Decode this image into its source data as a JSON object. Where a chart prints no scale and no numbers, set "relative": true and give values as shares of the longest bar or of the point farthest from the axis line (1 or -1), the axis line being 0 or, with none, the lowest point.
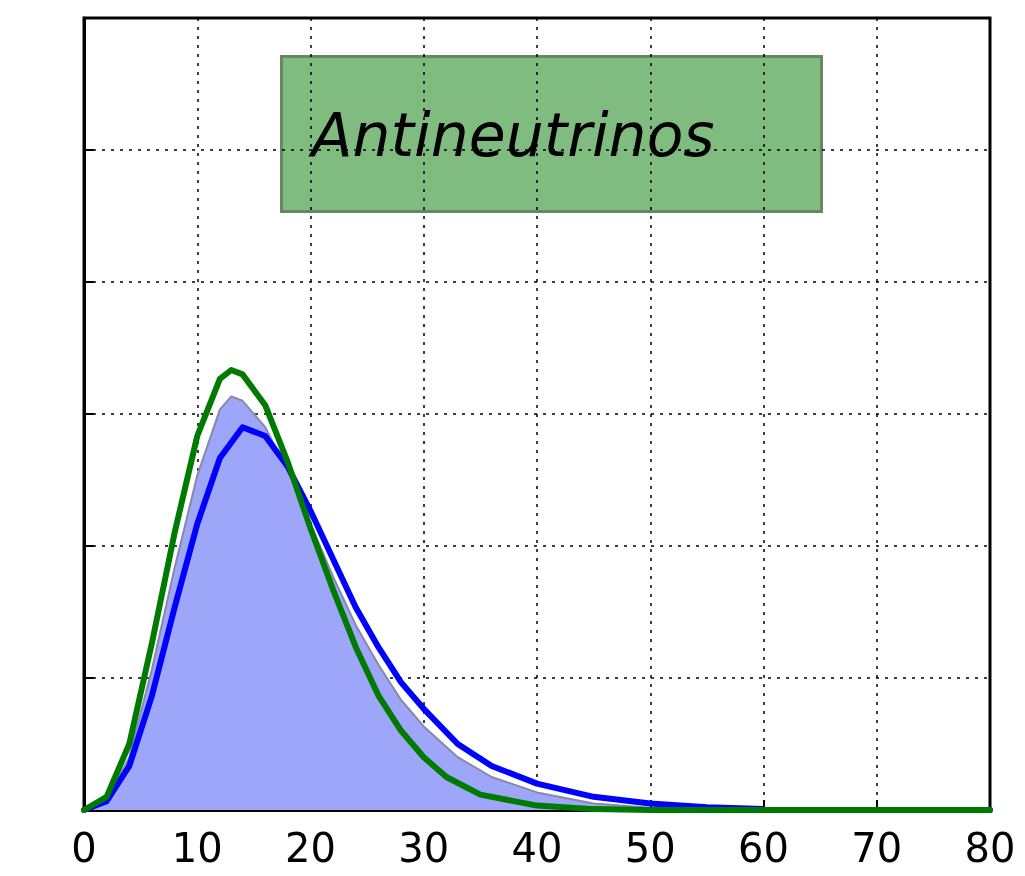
{
  "chart_data": {
    "type": "line",
    "relative": true,
    "tick_labels": "x",
    "grid": true,
    "xlim": [
      0,
      80
    ],
    "xticks": [
      0,
      10,
      20,
      30,
      40,
      50,
      60,
      70,
      80
    ],
    "annotations": [
      "Antineutrinos"
    ],
    "series": [
      {
        "type": "area",
        "color": "#9ea6fa",
        "x": [
          0,
          2,
          4,
          6,
          8,
          10,
          12,
          13,
          14,
          16,
          18,
          20,
          22,
          24,
          26,
          28,
          30,
          33,
          36,
          40,
          45,
          50,
          60,
          80
        ],
        "values": [
          0,
          0.02,
          0.12,
          0.32,
          0.55,
          0.76,
          0.91,
          0.94,
          0.93,
          0.87,
          0.77,
          0.65,
          0.53,
          0.42,
          0.33,
          0.25,
          0.19,
          0.12,
          0.075,
          0.04,
          0.015,
          0.005,
          0,
          0
        ]
      },
      {
        "color": "#0000ff",
        "x": [
          0,
          2,
          4,
          6,
          8,
          10,
          12,
          14,
          16,
          18,
          20,
          22,
          24,
          26,
          28,
          30,
          33,
          36,
          40,
          45,
          50,
          55,
          60,
          80
        ],
        "values": [
          0,
          0.02,
          0.1,
          0.26,
          0.46,
          0.65,
          0.8,
          0.87,
          0.85,
          0.78,
          0.68,
          0.57,
          0.46,
          0.37,
          0.29,
          0.23,
          0.15,
          0.1,
          0.06,
          0.03,
          0.015,
          0.006,
          0.002,
          0
        ]
      },
      {
        "color": "#007a00",
        "x": [
          0,
          2,
          4,
          6,
          8,
          10,
          12,
          13,
          14,
          16,
          18,
          20,
          22,
          24,
          26,
          28,
          30,
          32,
          35,
          40,
          45,
          50,
          80
        ],
        "values": [
          0,
          0.03,
          0.15,
          0.38,
          0.63,
          0.85,
          0.98,
          1,
          0.99,
          0.92,
          0.79,
          0.64,
          0.5,
          0.37,
          0.26,
          0.18,
          0.12,
          0.075,
          0.035,
          0.01,
          0.002,
          0,
          0
        ]
      }
    ]
  }
}
